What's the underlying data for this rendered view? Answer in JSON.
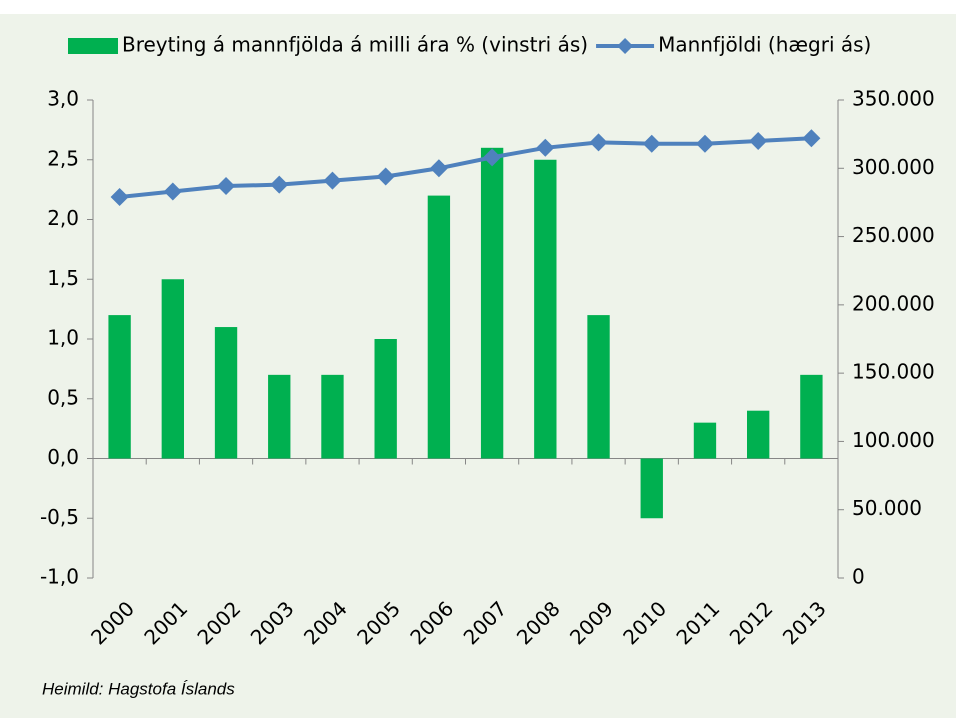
{
  "chart_data": {
    "type": "bar",
    "categories": [
      "2000",
      "2001",
      "2002",
      "2003",
      "2004",
      "2005",
      "2006",
      "2007",
      "2008",
      "2009",
      "2010",
      "2011",
      "2012",
      "2013"
    ],
    "series": [
      {
        "name": "Breyting á mannfjölda á milli ára % (vinstri ás)",
        "color": "#00b050",
        "type": "bar",
        "values": [
          1.2,
          1.5,
          1.1,
          0.7,
          0.7,
          1.0,
          2.2,
          2.6,
          2.5,
          1.2,
          -0.5,
          0.3,
          0.4,
          0.7
        ]
      },
      {
        "name": "Mannfjöldi (hægri ás)",
        "color": "#4f81bd",
        "type": "line",
        "axis": "y2",
        "marker": "diamond",
        "values": [
          279000,
          283000,
          287000,
          288000,
          291000,
          294000,
          300000,
          308000,
          315000,
          319000,
          318000,
          318000,
          320000,
          322000
        ]
      }
    ],
    "ylim": [
      -1,
      3
    ],
    "yticks": [
      {
        "value": -1,
        "label": "-1,0"
      },
      {
        "value": -0.5,
        "label": "-0,5"
      },
      {
        "value": 0,
        "label": "0,0"
      },
      {
        "value": 0.5,
        "label": "0,5"
      },
      {
        "value": 1,
        "label": "1,0"
      },
      {
        "value": 1.5,
        "label": "1,5"
      },
      {
        "value": 2,
        "label": "2,0"
      },
      {
        "value": 2.5,
        "label": "2,5"
      },
      {
        "value": 3,
        "label": "3,0"
      }
    ],
    "y2lim": [
      0,
      350000
    ],
    "y2ticks": [
      0,
      {
        "value": 50000,
        "label": "50.000"
      },
      {
        "value": 100000,
        "label": "100.000"
      },
      {
        "value": 150000,
        "label": "150.000"
      },
      {
        "value": 200000,
        "label": "200.000"
      },
      {
        "value": 250000,
        "label": "250.000"
      },
      {
        "value": 300000,
        "label": "300.000"
      },
      {
        "value": 350000,
        "label": "350.000"
      }
    ],
    "legend": "top",
    "source": "Heimild: Hagstofa Íslands"
  }
}
